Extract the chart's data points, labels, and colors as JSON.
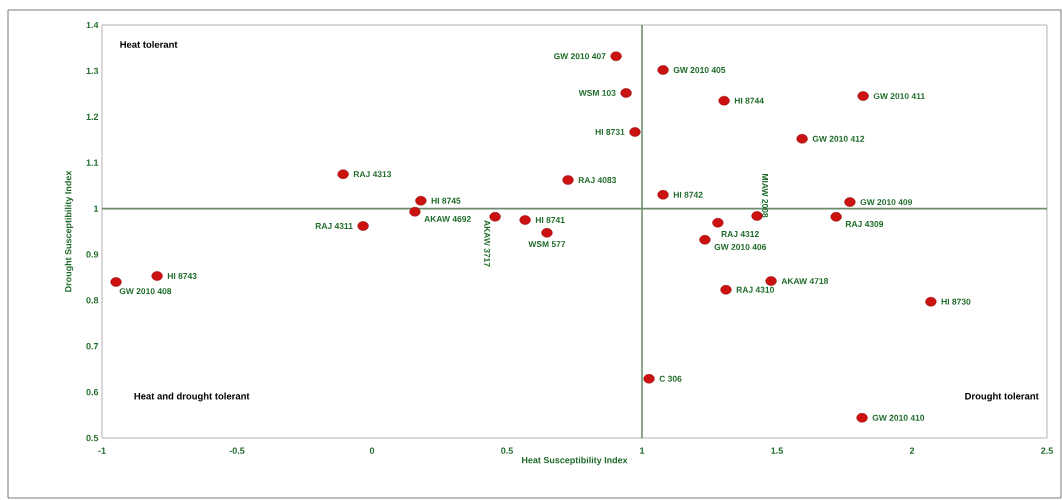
{
  "chart_data": {
    "type": "scatter",
    "xlabel": "Heat Susceptibility Index",
    "ylabel": "Drought Susceptibility Index",
    "x": [
      0.904,
      1.078,
      0.941,
      1.304,
      1.819,
      0.974,
      1.593,
      -0.107,
      0.726,
      1.078,
      0.181,
      1.77,
      0.159,
      -0.033,
      0.456,
      0.567,
      0.648,
      1.281,
      1.426,
      1.233,
      1.719,
      -0.796,
      -0.948,
      1.478,
      1.311,
      2.07,
      1.026,
      1.815
    ],
    "values": [
      1.332,
      1.302,
      1.252,
      1.235,
      1.245,
      1.167,
      1.152,
      1.075,
      1.062,
      1.03,
      1.017,
      1.014,
      0.993,
      0.962,
      0.982,
      0.975,
      0.947,
      0.969,
      0.984,
      0.932,
      0.982,
      0.853,
      0.84,
      0.842,
      0.823,
      0.797,
      0.629,
      0.544
    ],
    "value_labels": [
      "GW 2010 407",
      "GW 2010 405",
      "WSM 103",
      "HI 8744",
      "GW 2010 411",
      "HI 8731",
      "GW 2010 412",
      "RAJ 4313",
      "RAJ 4083",
      "HI 8742",
      "HI 8745",
      "GW 2010 409",
      "AKAW 4692",
      "RAJ 4311",
      "AKAW 3717",
      "HI 8741",
      "WSM 577",
      "RAJ 4312",
      "MIAW 2008",
      "GW 2010 406",
      "RAJ 4309",
      "HI 8743",
      "GW 2010 408",
      "AKAW 4718",
      "RAJ 4310",
      "HI 8730",
      "C 306",
      "GW 2010 410"
    ],
    "color": "#cc1111",
    "grid": false,
    "xlim": [
      -1,
      2.5
    ],
    "xticks": [
      -1,
      -0.5,
      0,
      0.5,
      1,
      1.5,
      2,
      2.5
    ],
    "ylim": [
      0.5,
      1.4
    ],
    "yticks": [
      0.5,
      0.6,
      0.7,
      0.8,
      0.9,
      1,
      1.1,
      1.2,
      1.3,
      1.4
    ],
    "ref_lines": [
      {
        "axis": "x",
        "value": 1,
        "color": "#3b6e3b"
      },
      {
        "axis": "y",
        "value": 1,
        "color": "#6e8a6e"
      }
    ],
    "annotations": [
      "Heat tolerant",
      "Heat and drought tolerant",
      "Drought tolerant"
    ]
  }
}
